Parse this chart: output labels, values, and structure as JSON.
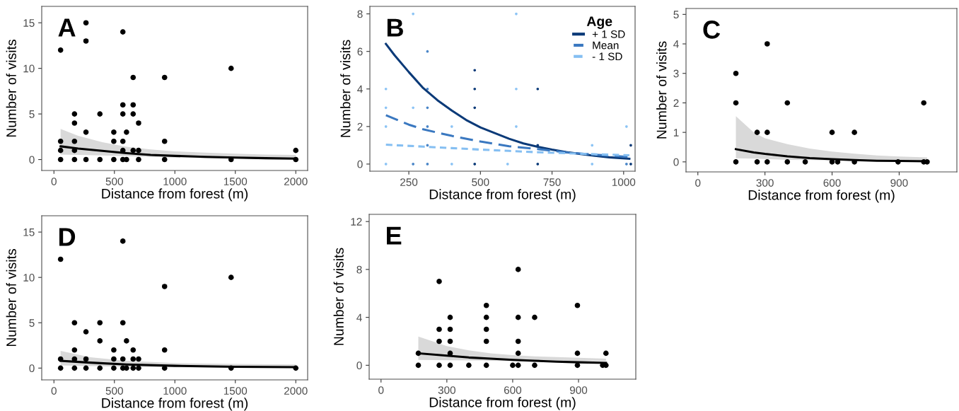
{
  "chart_data": [
    {
      "type": "scatter",
      "xlabel": "Distance from forest (m)",
      "ylabel": "Number of visits",
      "annotations": [
        "A"
      ],
      "xlim": [
        -101,
        2098
      ],
      "ylim": [
        -1.2,
        16.8
      ],
      "xticks": [
        0,
        500,
        1000,
        1500,
        2000
      ],
      "yticks": [
        0,
        5,
        10,
        15
      ],
      "grid": false,
      "legend": false,
      "series": [
        {
          "marker": "circle",
          "color": "#000000",
          "x": [
            55,
            55,
            55,
            55,
            170,
            170,
            170,
            170,
            170,
            265,
            265,
            265,
            265,
            380,
            380,
            495,
            495,
            495,
            570,
            570,
            570,
            570,
            570,
            570,
            600,
            600,
            655,
            655,
            655,
            655,
            700,
            700,
            700,
            915,
            915,
            915,
            1465,
            1465,
            2000,
            2000
          ],
          "values": [
            12,
            2,
            1,
            0,
            5,
            4,
            2,
            1,
            0,
            15,
            13,
            3,
            0,
            5,
            0,
            3,
            2,
            0,
            14,
            6,
            5,
            2,
            1,
            0,
            3,
            0,
            9,
            6,
            5,
            1,
            4,
            1,
            0,
            9,
            2,
            0,
            10,
            0,
            1,
            0
          ]
        },
        {
          "type": "line",
          "marker": "none",
          "color": "#000000",
          "line_style": "solid",
          "x": [
            55,
            200,
            400,
            600,
            800,
            1000,
            1250,
            1500,
            1750,
            2000
          ],
          "values": [
            1.45,
            1.2,
            0.95,
            0.7,
            0.5,
            0.4,
            0.3,
            0.22,
            0.15,
            0.1
          ],
          "lower": [
            0.55,
            0.5,
            0.45,
            0.38,
            0.3,
            0.22,
            0.15,
            0.1,
            0.05,
            0.0
          ],
          "upper": [
            3.35,
            2.6,
            1.9,
            1.4,
            1.1,
            0.9,
            0.75,
            0.65,
            0.55,
            0.5
          ]
        }
      ]
    },
    {
      "type": "line",
      "xlabel": "Distance from forest (m)",
      "ylabel": "Number of visits",
      "annotations": [
        "B"
      ],
      "legend_title": "Age",
      "xlim": [
        114,
        1040
      ],
      "ylim": [
        -0.38,
        8.4
      ],
      "xticks": [
        250,
        500,
        750,
        1000
      ],
      "yticks": [
        0,
        2,
        4,
        6,
        8
      ],
      "grid": false,
      "legend": "top right",
      "series": [
        {
          "type": "scatter",
          "marker": "circle",
          "color": "#8cc4f5",
          "x": [
            265,
            625,
            170,
            625,
            170,
            265,
            170,
            400,
            625,
            1010,
            890,
            170,
            400,
            595,
            890
          ],
          "values": [
            8,
            8,
            4,
            4,
            3,
            3,
            2,
            2,
            2,
            2,
            1,
            0,
            0,
            0,
            0
          ]
        },
        {
          "type": "scatter",
          "marker": "circle",
          "color": "#4a86c8",
          "x": [
            315,
            315,
            315,
            315,
            315,
            315,
            265,
            1010
          ],
          "values": [
            6,
            4,
            3,
            2,
            1,
            0,
            0,
            0
          ]
        },
        {
          "type": "scatter",
          "marker": "circle",
          "color": "#0b3a78",
          "x": [
            480,
            480,
            480,
            480,
            700,
            700,
            700,
            1025,
            1025
          ],
          "values": [
            5,
            4,
            3,
            0,
            4,
            1,
            0,
            1,
            0
          ]
        },
        {
          "name": "+ 1 SD",
          "marker": "none",
          "color": "#0b3a78",
          "line_style": "solid",
          "x": [
            170,
            200,
            250,
            300,
            350,
            400,
            450,
            500,
            550,
            600,
            650,
            700,
            750,
            800,
            850,
            900,
            950,
            1020
          ],
          "values": [
            6.4,
            5.8,
            4.9,
            4.05,
            3.4,
            2.85,
            2.35,
            1.95,
            1.65,
            1.35,
            1.1,
            0.92,
            0.77,
            0.64,
            0.53,
            0.44,
            0.36,
            0.28
          ]
        },
        {
          "name": "Mean",
          "marker": "none",
          "color": "#3a78c0",
          "line_style": "dashed",
          "x": [
            170,
            250,
            300,
            400,
            500,
            600,
            700,
            800,
            900,
            1020
          ],
          "values": [
            2.6,
            2.1,
            1.85,
            1.5,
            1.2,
            0.95,
            0.8,
            0.62,
            0.5,
            0.38
          ]
        },
        {
          "name": "- 1 SD",
          "marker": "none",
          "color": "#85bff2",
          "line_style": "dotted",
          "x": [
            170,
            300,
            400,
            500,
            600,
            700,
            800,
            900,
            1020
          ],
          "values": [
            1.03,
            0.93,
            0.85,
            0.77,
            0.7,
            0.63,
            0.58,
            0.52,
            0.47
          ]
        }
      ]
    },
    {
      "type": "scatter",
      "xlabel": "Distance from forest (m)",
      "ylabel": "Number of visits",
      "annotations": [
        "C"
      ],
      "xlim": [
        -53,
        1158
      ],
      "ylim": [
        -0.34,
        5.2
      ],
      "xticks": [
        0,
        300,
        600,
        900
      ],
      "yticks": [
        0,
        1,
        2,
        3,
        4,
        5
      ],
      "grid": false,
      "legend": false,
      "series": [
        {
          "marker": "circle",
          "color": "#000000",
          "x": [
            170,
            170,
            170,
            265,
            265,
            310,
            310,
            310,
            400,
            400,
            480,
            600,
            600,
            625,
            700,
            700,
            895,
            1010,
            1010,
            1025
          ],
          "values": [
            3,
            2,
            0,
            1,
            0,
            4,
            1,
            0,
            2,
            0,
            0,
            1,
            0,
            0,
            1,
            0,
            0,
            2,
            0,
            0
          ]
        },
        {
          "type": "line",
          "marker": "none",
          "color": "#000000",
          "line_style": "solid",
          "x": [
            170,
            250,
            300,
            400,
            500,
            600,
            700,
            800,
            900,
            1025
          ],
          "values": [
            0.43,
            0.32,
            0.27,
            0.19,
            0.13,
            0.09,
            0.06,
            0.04,
            0.03,
            0.02
          ],
          "lower": [
            0.12,
            0.11,
            0.1,
            0.07,
            0.06,
            0.05,
            0.03,
            0.02,
            0.01,
            0.0
          ],
          "upper": [
            1.55,
            1.0,
            0.8,
            0.6,
            0.45,
            0.35,
            0.28,
            0.22,
            0.18,
            0.15
          ]
        }
      ]
    },
    {
      "type": "scatter",
      "xlabel": "Distance from forest (m)",
      "ylabel": "Number of visits",
      "annotations": [
        "D"
      ],
      "xlim": [
        -101,
        2098
      ],
      "ylim": [
        -1.3,
        16.8
      ],
      "xticks": [
        0,
        500,
        1000,
        1500,
        2000
      ],
      "yticks": [
        0,
        5,
        10,
        15
      ],
      "grid": false,
      "legend": false,
      "series": [
        {
          "marker": "circle",
          "color": "#000000",
          "x": [
            55,
            55,
            55,
            170,
            170,
            170,
            170,
            265,
            265,
            265,
            380,
            380,
            380,
            495,
            495,
            495,
            570,
            570,
            570,
            570,
            600,
            600,
            655,
            655,
            655,
            700,
            700,
            915,
            915,
            915,
            1465,
            1465,
            2000
          ],
          "values": [
            12,
            1,
            0,
            5,
            2,
            1,
            0,
            4,
            1,
            0,
            5,
            3,
            0,
            2,
            1,
            0,
            14,
            5,
            1,
            0,
            3,
            0,
            2,
            1,
            0,
            1,
            0,
            9,
            2,
            0,
            10,
            0,
            0
          ]
        },
        {
          "type": "line",
          "marker": "none",
          "color": "#000000",
          "line_style": "solid",
          "x": [
            55,
            300,
            600,
            1000,
            1500,
            2000
          ],
          "values": [
            0.8,
            0.6,
            0.4,
            0.25,
            0.15,
            0.1
          ],
          "lower": [
            0.3,
            0.22,
            0.15,
            0.08,
            0.03,
            0.0
          ],
          "upper": [
            1.9,
            1.2,
            0.8,
            0.55,
            0.45,
            0.4
          ]
        }
      ]
    },
    {
      "type": "scatter",
      "xlabel": "Distance from forest (m)",
      "ylabel": "Number of visits",
      "annotations": [
        "E"
      ],
      "xlim": [
        -54,
        1161
      ],
      "ylim": [
        -1.16,
        12.6
      ],
      "xticks": [
        0,
        300,
        600,
        900
      ],
      "yticks": [
        0,
        4,
        8,
        12
      ],
      "grid": false,
      "legend": false,
      "series": [
        {
          "marker": "circle",
          "color": "#000000",
          "x": [
            170,
            170,
            265,
            265,
            265,
            265,
            315,
            315,
            315,
            315,
            315,
            400,
            480,
            480,
            480,
            480,
            480,
            600,
            625,
            625,
            625,
            625,
            625,
            700,
            700,
            895,
            895,
            895,
            1010,
            1025,
            1025
          ],
          "values": [
            1,
            0,
            7,
            3,
            2,
            0,
            4,
            3,
            2,
            1,
            0,
            0,
            5,
            4,
            3,
            2,
            0,
            0,
            8,
            4,
            2,
            1,
            0,
            4,
            0,
            5,
            1,
            0,
            0,
            1,
            0
          ]
        },
        {
          "type": "line",
          "marker": "none",
          "color": "#000000",
          "line_style": "solid",
          "x": [
            170,
            300,
            400,
            500,
            600,
            700,
            800,
            900,
            1025
          ],
          "values": [
            1.0,
            0.8,
            0.65,
            0.55,
            0.45,
            0.38,
            0.3,
            0.25,
            0.2
          ],
          "lower": [
            0.45,
            0.42,
            0.4,
            0.38,
            0.37,
            0.36,
            0.35,
            0.35,
            0.35
          ],
          "upper": [
            2.4,
            1.6,
            1.25,
            1.0,
            0.85,
            0.75,
            0.68,
            0.62,
            0.55
          ]
        }
      ]
    }
  ]
}
